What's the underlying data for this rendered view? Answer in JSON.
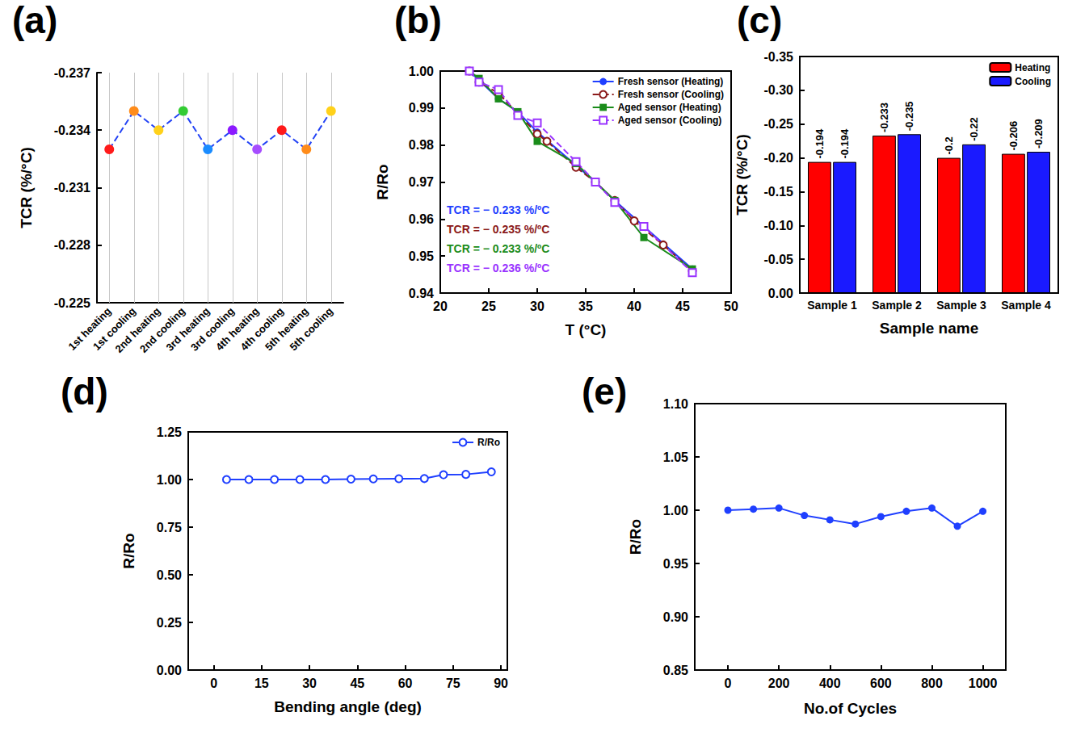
{
  "chart_data": [
    {
      "type": "line",
      "title": "(a)",
      "ylabel": "TCR (%/°C)",
      "categories": [
        "1st heating",
        "1st cooling",
        "2nd heating",
        "2nd cooling",
        "3rd heating",
        "3rd cooling",
        "4th heating",
        "4th cooling",
        "5th heating",
        "5th cooling"
      ],
      "series": [
        {
          "color": "#2343f5",
          "line_style": "dashed",
          "marker": "circle",
          "values": [
            -0.233,
            -0.235,
            -0.234,
            -0.235,
            -0.233,
            -0.234,
            -0.233,
            -0.234,
            -0.233,
            -0.235
          ],
          "colors": [
            "#ff1a1a",
            "#ff8c1a",
            "#ffd11a",
            "#33cc33",
            "#1a8cff",
            "#8c1aff",
            "#a64dff",
            "#ff1a1a",
            "#ff8c1a",
            "#ffd11a"
          ]
        }
      ],
      "ylim": [
        -0.225,
        -0.237
      ],
      "yticks": [
        -0.237,
        -0.234,
        -0.231,
        -0.228,
        -0.225
      ],
      "grid": "x"
    },
    {
      "type": "line",
      "title": "(b)",
      "xlabel": "T (°C)",
      "ylabel": "R/Ro",
      "series": [
        {
          "name": "Fresh sensor (Heating)",
          "color": "#1f3fff",
          "marker": "circle",
          "line_style": "solid",
          "x": [
            23,
            26,
            28,
            30,
            34,
            36,
            38,
            41,
            46
          ],
          "values": [
            1.0,
            0.9925,
            0.989,
            0.9835,
            0.9745,
            0.97,
            0.965,
            0.958,
            0.9465
          ]
        },
        {
          "name": "Fresh sensor (Cooling)",
          "color": "#8b1a1a",
          "marker": "open_circle",
          "line_style": "dashed",
          "x": [
            23,
            24,
            26,
            28,
            30,
            31,
            34,
            36,
            38,
            40,
            43,
            46
          ],
          "values": [
            1.0,
            0.997,
            0.994,
            0.9885,
            0.983,
            0.981,
            0.974,
            0.97,
            0.965,
            0.9595,
            0.953,
            0.946
          ]
        },
        {
          "name": "Aged sensor (Heating)",
          "color": "#1a8c1a",
          "marker": "square",
          "line_style": "solid",
          "x": [
            23,
            24,
            26,
            28,
            30,
            34,
            38,
            41,
            46
          ],
          "values": [
            1.0,
            0.998,
            0.9925,
            0.989,
            0.981,
            0.975,
            0.965,
            0.955,
            0.9465
          ]
        },
        {
          "name": "Aged sensor (Cooling)",
          "color": "#9933ff",
          "marker": "open_square",
          "line_style": "dashed",
          "x": [
            23,
            24,
            26,
            28,
            30,
            34,
            36,
            38,
            41,
            46
          ],
          "values": [
            1.0,
            0.997,
            0.995,
            0.988,
            0.986,
            0.9755,
            0.97,
            0.9645,
            0.958,
            0.9455
          ]
        }
      ],
      "xlim": [
        20,
        50
      ],
      "xticks": [
        20,
        25,
        30,
        35,
        40,
        45,
        50
      ],
      "ylim": [
        0.94,
        1
      ],
      "yticks": [
        0.94,
        0.95,
        0.96,
        0.97,
        0.98,
        0.99,
        {
          "value": 1,
          "label": "1.00"
        }
      ],
      "legend": "upper right",
      "annotations": [
        {
          "text": "TCR = − 0.233 %/ºC",
          "color": "#1f3fff"
        },
        {
          "text": "TCR = − 0.235 %/ºC",
          "color": "#8b1a1a"
        },
        {
          "text": "TCR = − 0.233 %/ºC",
          "color": "#1a8c1a"
        },
        {
          "text": "TCR = − 0.236 %/ºC",
          "color": "#9933ff"
        }
      ]
    },
    {
      "type": "bar",
      "title": "(c)",
      "xlabel": "Sample name",
      "ylabel": "TCR (%/°C)",
      "categories": [
        "Sample 1",
        "Sample 2",
        "Sample 3",
        "Sample 4"
      ],
      "series": [
        {
          "name": "Heating",
          "color": "#ff0000",
          "values": [
            -0.194,
            -0.233,
            -0.2,
            -0.206
          ]
        },
        {
          "name": "Cooling",
          "color": "#1a1aff",
          "values": [
            -0.194,
            -0.235,
            -0.22,
            -0.209
          ]
        }
      ],
      "ylim": [
        0,
        -0.35
      ],
      "yticks": [
        {
          "value": 0,
          "label": "0.00"
        },
        -0.05,
        {
          "value": -0.1,
          "label": "-0.10"
        },
        -0.15,
        {
          "value": -0.2,
          "label": "-0.20"
        },
        -0.25,
        {
          "value": -0.3,
          "label": "-0.30"
        },
        -0.35
      ],
      "data_labels": true,
      "legend": "upper right"
    },
    {
      "type": "line",
      "title": "(d)",
      "xlabel": "Bending angle (deg)",
      "ylabel": "R/Ro",
      "series": [
        {
          "name": "R/Ro",
          "color": "#1f3fff",
          "marker": "open_circle",
          "line_style": "solid",
          "x": [
            4,
            11,
            19,
            27,
            35,
            43,
            50,
            58,
            66,
            72,
            79,
            87
          ],
          "values": [
            1.0,
            1.0,
            1.0,
            1.0,
            1.0,
            1.002,
            1.003,
            1.004,
            1.005,
            1.025,
            1.027,
            1.04
          ]
        }
      ],
      "xlim": [
        -8,
        92
      ],
      "xticks": [
        0,
        15,
        30,
        45,
        60,
        75,
        90
      ],
      "ylim": [
        0,
        1.25
      ],
      "yticks": [
        {
          "value": 0,
          "label": "0.00"
        },
        0.25,
        {
          "value": 0.5,
          "label": "0.50"
        },
        0.75,
        {
          "value": 1,
          "label": "1.00"
        },
        1.25
      ],
      "legend": "upper right"
    },
    {
      "type": "line",
      "title": "(e)",
      "xlabel": "No.of Cycles",
      "ylabel": "R/Ro",
      "series": [
        {
          "color": "#1f3fff",
          "marker": "circle",
          "line_style": "solid",
          "x": [
            0,
            100,
            200,
            300,
            400,
            500,
            600,
            700,
            800,
            900,
            1000
          ],
          "values": [
            1.0,
            1.001,
            1.002,
            0.995,
            0.991,
            0.987,
            0.994,
            0.999,
            1.002,
            0.985,
            0.999
          ]
        }
      ],
      "xlim": [
        -130,
        1090
      ],
      "xticks": [
        0,
        200,
        400,
        600,
        800,
        1000
      ],
      "ylim": [
        0.85,
        1.1
      ],
      "yticks": [
        0.85,
        {
          "value": 0.9,
          "label": "0.90"
        },
        0.95,
        {
          "value": 1,
          "label": "1.00"
        },
        1.05,
        {
          "value": 1.1,
          "label": "1.10"
        }
      ]
    }
  ]
}
